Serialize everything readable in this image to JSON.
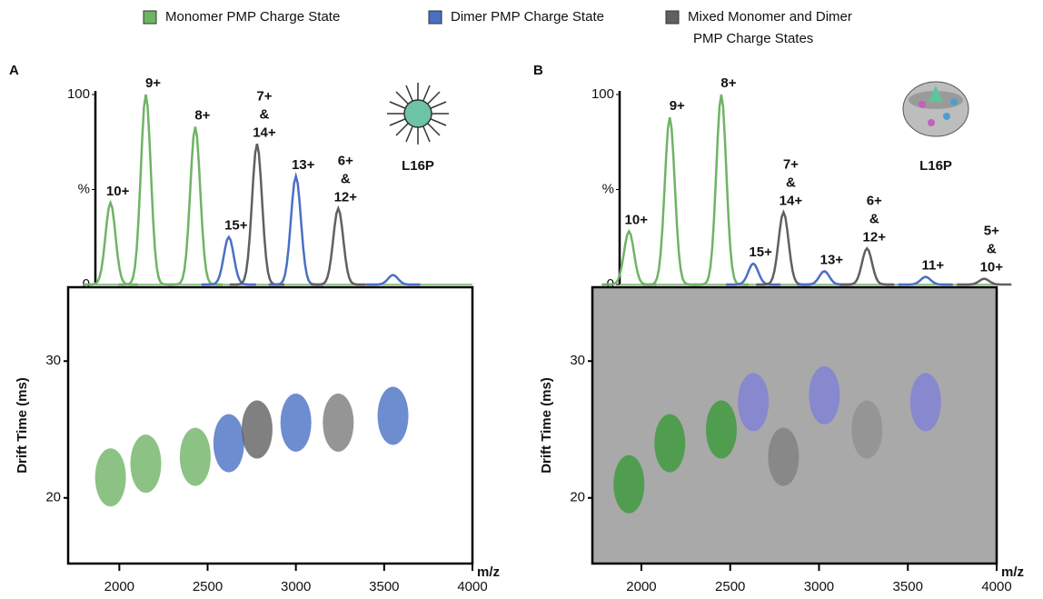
{
  "legend": {
    "items": [
      {
        "name": [
          "Monomer PMP Charge State"
        ],
        "color": "#6fb365"
      },
      {
        "name": [
          "Dimer PMP Charge State"
        ],
        "color": "#4a6fc4"
      },
      {
        "name": [
          "Mixed Monomer and Dimer",
          "PMP Charge States"
        ],
        "color": "#606060"
      }
    ]
  },
  "chart_data": [
    {
      "type": "ion-mobility",
      "panel_label": "A",
      "molecule_label": "L16P",
      "x_label": "m/z",
      "xlim": [
        1710,
        4000
      ],
      "xticks": [
        2000,
        2500,
        3000,
        3500,
        4000
      ],
      "spectrum": {
        "ylim": [
          0,
          100
        ],
        "yticks": [
          0,
          {
            "value": 50,
            "label": "%"
          },
          100
        ],
        "peaks": [
          {
            "label": [
              "10+"
            ],
            "mz": 1950,
            "intensity": 43,
            "color": "#6fb365"
          },
          {
            "label": [
              "9+"
            ],
            "mz": 2150,
            "intensity": 100,
            "color": "#6fb365"
          },
          {
            "label": [
              "8+"
            ],
            "mz": 2430,
            "intensity": 83,
            "color": "#6fb365"
          },
          {
            "label": [
              "15+"
            ],
            "mz": 2620,
            "intensity": 25,
            "color": "#4a6fc4"
          },
          {
            "label": [
              "7+",
              "&",
              "14+"
            ],
            "mz": 2780,
            "intensity": 74,
            "color": "#606060"
          },
          {
            "label": [
              "13+"
            ],
            "mz": 3000,
            "intensity": 57,
            "color": "#4a6fc4"
          },
          {
            "label": [
              "6+",
              "&",
              "12+"
            ],
            "mz": 3240,
            "intensity": 40,
            "color": "#606060"
          },
          {
            "mz": 3550,
            "intensity": 5,
            "color": "#4a6fc4"
          }
        ]
      },
      "drift": {
        "y_label": "Drift Time (ms)",
        "ylim": [
          15.2,
          35.4
        ],
        "yticks": [
          20,
          30
        ],
        "spots": [
          {
            "mz": 1950,
            "drift": 21.5,
            "color": "#6fb365"
          },
          {
            "mz": 2150,
            "drift": 22.5,
            "color": "#6fb365"
          },
          {
            "mz": 2430,
            "drift": 23,
            "color": "#6fb365"
          },
          {
            "mz": 2620,
            "drift": 24,
            "color": "#4a6fc4"
          },
          {
            "mz": 2780,
            "drift": 25,
            "color": "#606060"
          },
          {
            "mz": 3000,
            "drift": 25.5,
            "color": "#4a6fc4"
          },
          {
            "mz": 3240,
            "drift": 25.5,
            "color": "#7a7a7a"
          },
          {
            "mz": 3550,
            "drift": 26,
            "color": "#4a6fc4"
          }
        ]
      }
    },
    {
      "type": "ion-mobility",
      "panel_label": "B",
      "molecule_label": "L16P",
      "x_label": "m/z",
      "xlim": [
        1724,
        4000
      ],
      "xticks": [
        2000,
        2500,
        3000,
        3500,
        4000
      ],
      "spectrum": {
        "ylim": [
          0,
          100
        ],
        "yticks": [
          0,
          {
            "value": 50,
            "label": "%"
          },
          100
        ],
        "peaks": [
          {
            "label": [
              "10+"
            ],
            "mz": 1930,
            "intensity": 28,
            "color": "#6fb365"
          },
          {
            "label": [
              "9+"
            ],
            "mz": 2160,
            "intensity": 88,
            "color": "#6fb365"
          },
          {
            "label": [
              "8+"
            ],
            "mz": 2450,
            "intensity": 100,
            "color": "#6fb365"
          },
          {
            "label": [
              "15+"
            ],
            "mz": 2630,
            "intensity": 11,
            "color": "#4a6fc4"
          },
          {
            "label": [
              "7+",
              "&",
              "14+"
            ],
            "mz": 2800,
            "intensity": 38,
            "color": "#606060"
          },
          {
            "label": [
              "13+"
            ],
            "mz": 3030,
            "intensity": 7,
            "color": "#4a6fc4"
          },
          {
            "label": [
              "6+",
              "&",
              "12+"
            ],
            "mz": 3270,
            "intensity": 19,
            "color": "#606060"
          },
          {
            "label": [
              "11+"
            ],
            "mz": 3600,
            "intensity": 4,
            "color": "#4a6fc4"
          },
          {
            "label": [
              "5+",
              "&",
              "10+"
            ],
            "mz": 3930,
            "intensity": 3,
            "color": "#606060"
          }
        ]
      },
      "drift": {
        "y_label": "Drift Time (ms)",
        "ylim": [
          15.2,
          35.4
        ],
        "yticks": [
          20,
          30
        ],
        "spots": [
          {
            "mz": 1930,
            "drift": 21,
            "color": "#3a9a3a"
          },
          {
            "mz": 2160,
            "drift": 24,
            "color": "#3a9a3a"
          },
          {
            "mz": 2450,
            "drift": 25,
            "color": "#3a9a3a"
          },
          {
            "mz": 2630,
            "drift": 27,
            "color": "#8080d8"
          },
          {
            "mz": 2800,
            "drift": 23,
            "color": "#808080"
          },
          {
            "mz": 3030,
            "drift": 27.5,
            "color": "#8080d8"
          },
          {
            "mz": 3270,
            "drift": 25,
            "color": "#909090"
          },
          {
            "mz": 3600,
            "drift": 27,
            "color": "#8080d8"
          }
        ]
      }
    }
  ]
}
